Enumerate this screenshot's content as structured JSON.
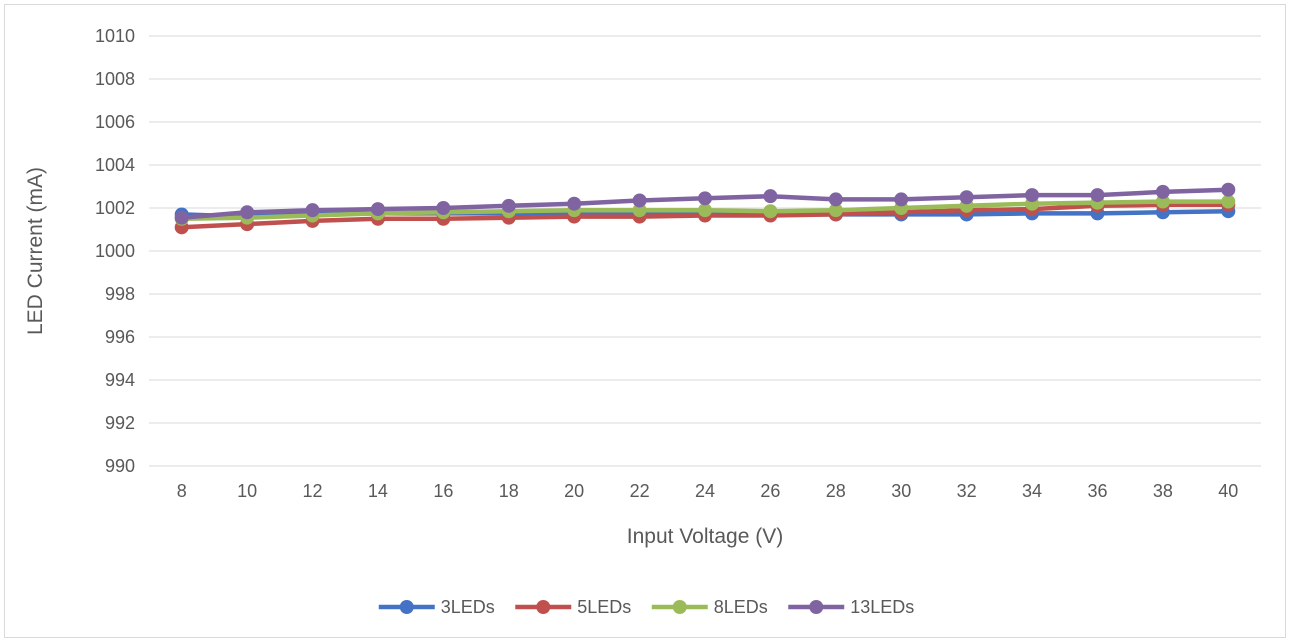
{
  "chart_data": {
    "type": "line",
    "title": "",
    "xlabel": "Input Voltage (V)",
    "ylabel": "LED Current (mA)",
    "ylim": [
      990,
      1010
    ],
    "yticks": [
      990,
      992,
      994,
      996,
      998,
      1000,
      1002,
      1004,
      1006,
      1008,
      1010
    ],
    "categories": [
      "8",
      "10",
      "12",
      "14",
      "16",
      "18",
      "20",
      "22",
      "24",
      "26",
      "28",
      "30",
      "32",
      "34",
      "36",
      "38",
      "40"
    ],
    "grid": "horizontal",
    "legend": "bottom",
    "series": [
      {
        "name": "3LEDs",
        "color": "#4472c4",
        "values": [
          1001.7,
          1001.6,
          1001.7,
          1001.75,
          1001.75,
          1001.75,
          1001.75,
          1001.75,
          1001.75,
          1001.7,
          1001.7,
          1001.7,
          1001.7,
          1001.75,
          1001.75,
          1001.8,
          1001.85
        ]
      },
      {
        "name": "5LEDs",
        "color": "#c0504d",
        "values": [
          1001.1,
          1001.25,
          1001.4,
          1001.5,
          1001.5,
          1001.55,
          1001.6,
          1001.6,
          1001.65,
          1001.65,
          1001.7,
          1001.8,
          1001.9,
          1001.95,
          1002.1,
          1002.15,
          1002.15
        ]
      },
      {
        "name": "8LEDs",
        "color": "#9bbb59",
        "values": [
          1001.5,
          1001.55,
          1001.65,
          1001.75,
          1001.8,
          1001.85,
          1001.9,
          1001.9,
          1001.9,
          1001.85,
          1001.9,
          1002.0,
          1002.1,
          1002.2,
          1002.25,
          1002.3,
          1002.3
        ]
      },
      {
        "name": "13LEDs",
        "color": "#8064a2",
        "values": [
          1001.55,
          1001.8,
          1001.9,
          1001.95,
          1002.0,
          1002.1,
          1002.2,
          1002.35,
          1002.45,
          1002.55,
          1002.4,
          1002.4,
          1002.5,
          1002.6,
          1002.6,
          1002.75,
          1002.85
        ]
      }
    ]
  }
}
